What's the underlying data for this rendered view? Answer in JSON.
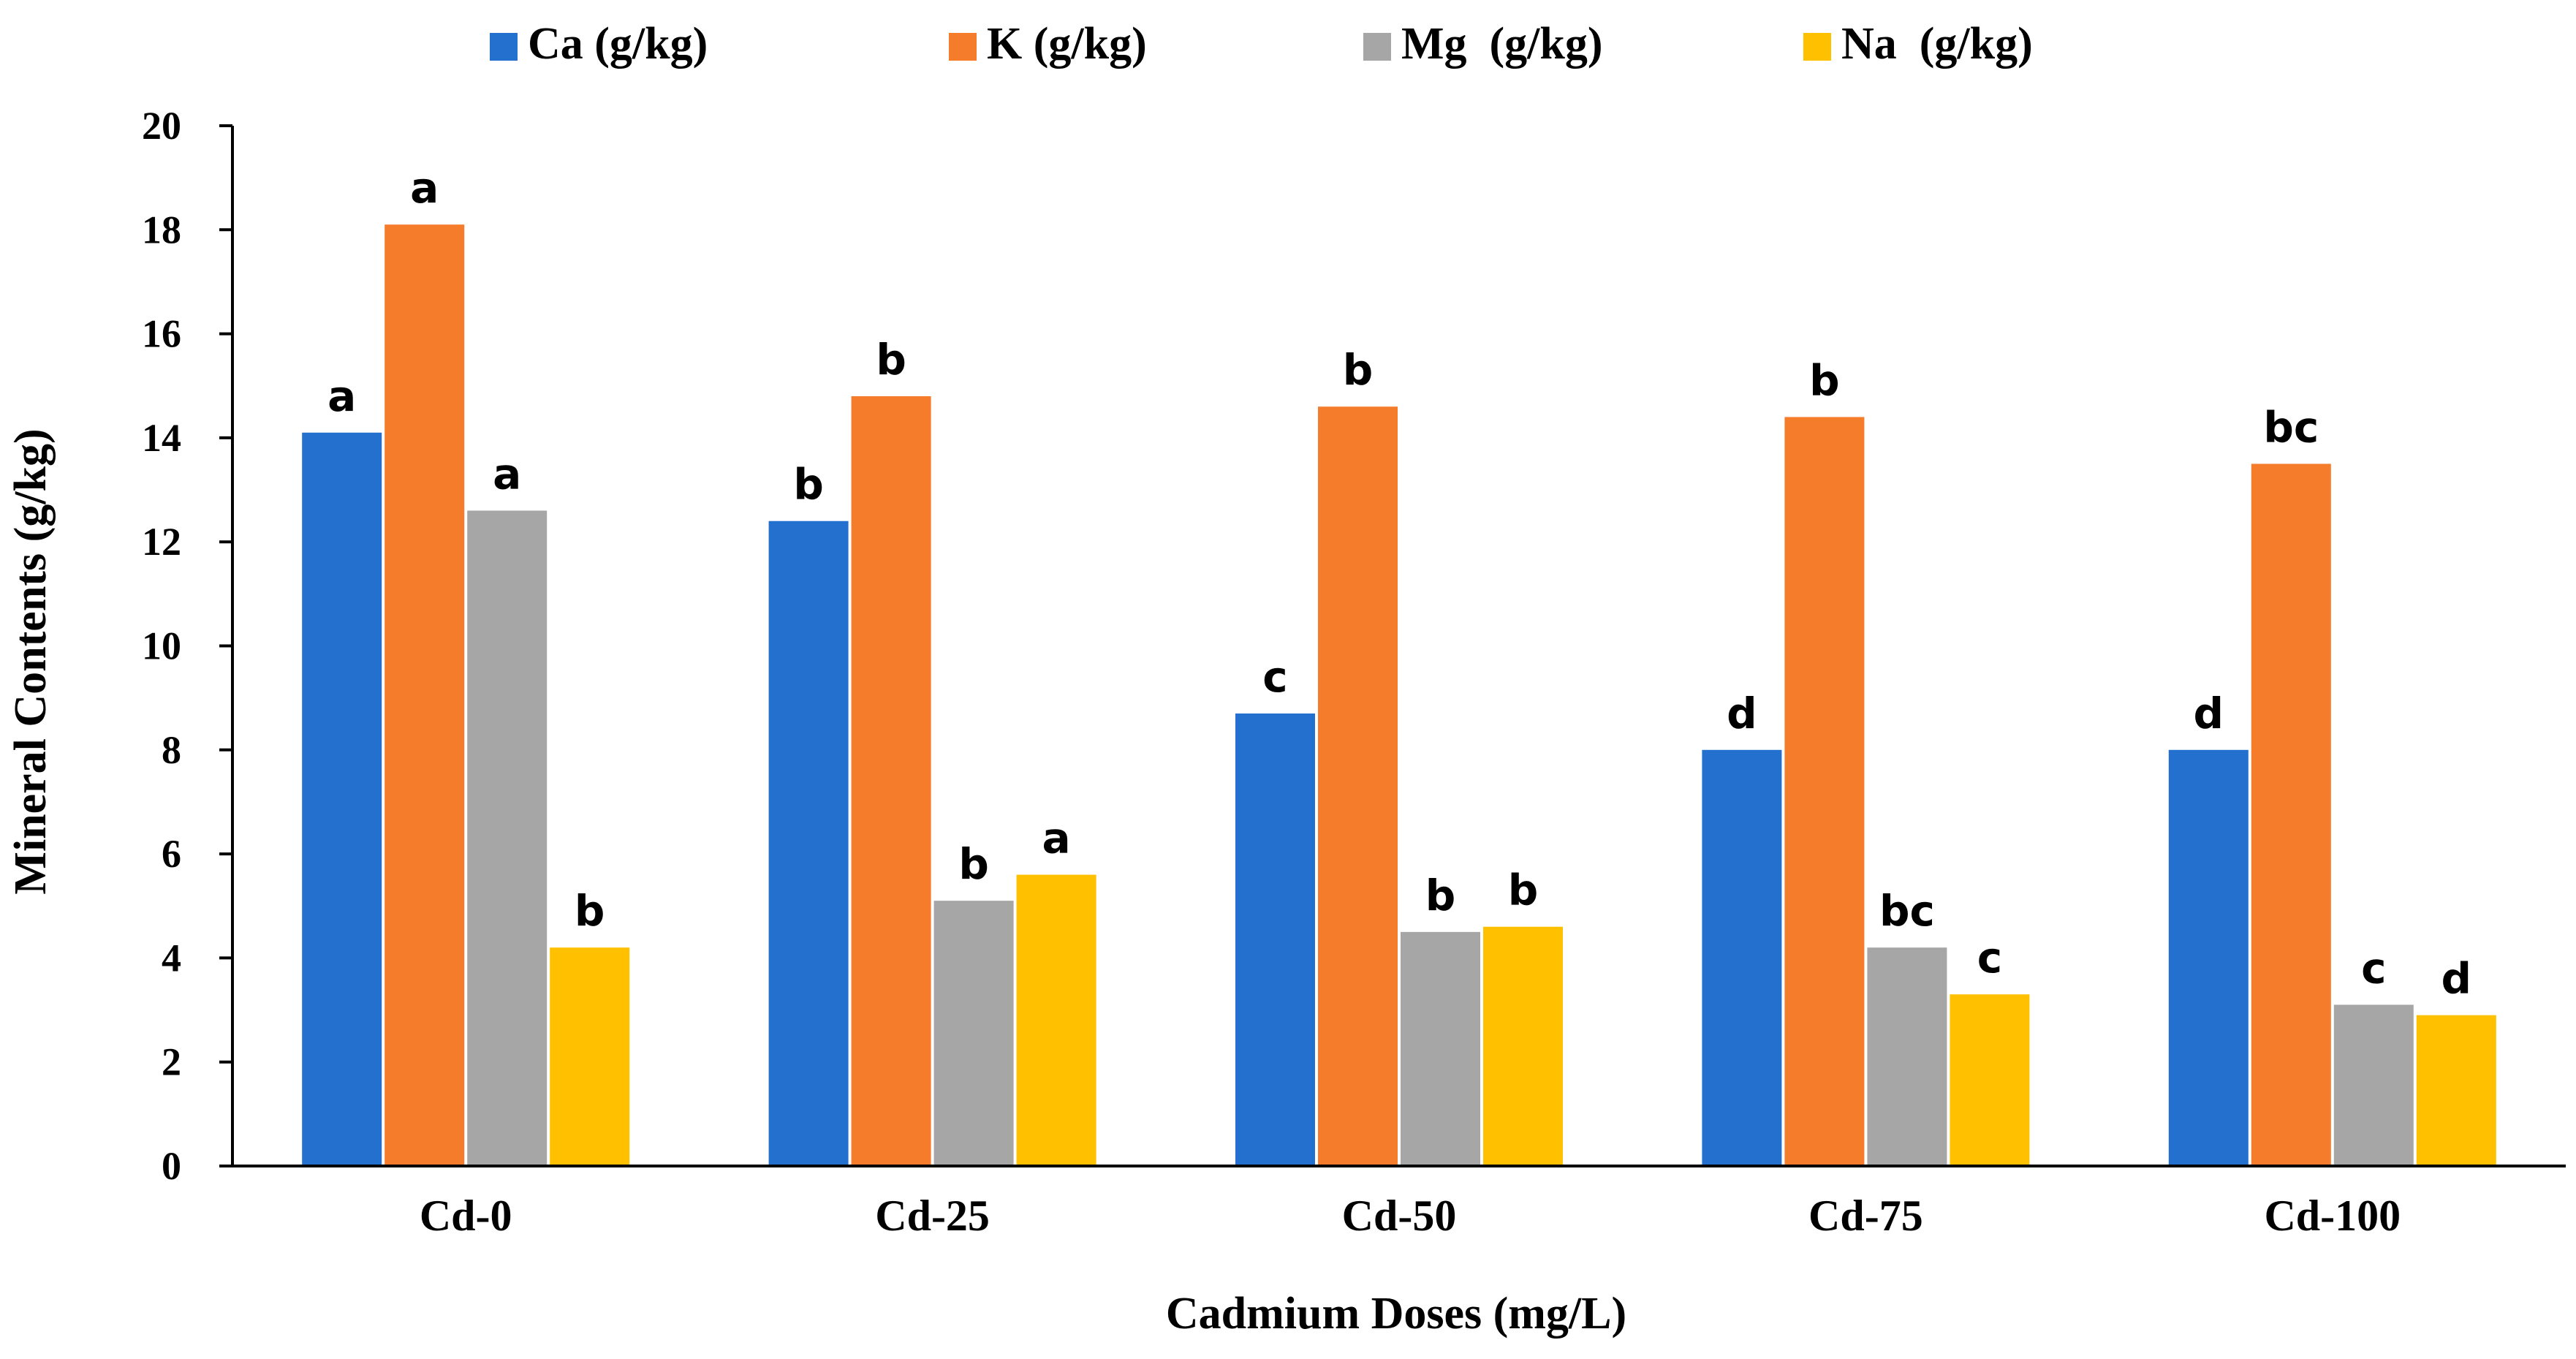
{
  "chart_data": {
    "type": "bar",
    "title": "",
    "xlabel": "Cadmium Doses (mg/L)",
    "ylabel": "Mineral Contents (g/kg)",
    "ylim": [
      0,
      20
    ],
    "yticks": [
      0,
      2,
      4,
      6,
      8,
      10,
      12,
      14,
      16,
      18,
      20
    ],
    "grid": false,
    "legend_position": "top",
    "categories": [
      "Cd-0",
      "Cd-25",
      "Cd-50",
      "Cd-75",
      "Cd-100"
    ],
    "series": [
      {
        "name": "Ca (g/kg)",
        "color": "#2470CE",
        "values": [
          14.1,
          12.4,
          8.7,
          8.0,
          8.0
        ],
        "labels": [
          "a",
          "b",
          "c",
          "d",
          "d"
        ]
      },
      {
        "name": "K (g/kg)",
        "color": "#F57C2A",
        "values": [
          18.1,
          14.8,
          14.6,
          14.4,
          13.5
        ],
        "labels": [
          "a",
          "b",
          "b",
          "b",
          "bc"
        ]
      },
      {
        "name": "Mg  (g/kg)",
        "color": "#A6A6A6",
        "values": [
          12.6,
          5.1,
          4.5,
          4.2,
          3.1
        ],
        "labels": [
          "a",
          "b",
          "b",
          "bc",
          "c"
        ]
      },
      {
        "name": "Na  (g/kg)",
        "color": "#FFC000",
        "values": [
          4.2,
          5.6,
          4.6,
          3.3,
          2.9
        ],
        "labels": [
          "b",
          "a",
          "b",
          "c",
          "d"
        ]
      }
    ]
  }
}
